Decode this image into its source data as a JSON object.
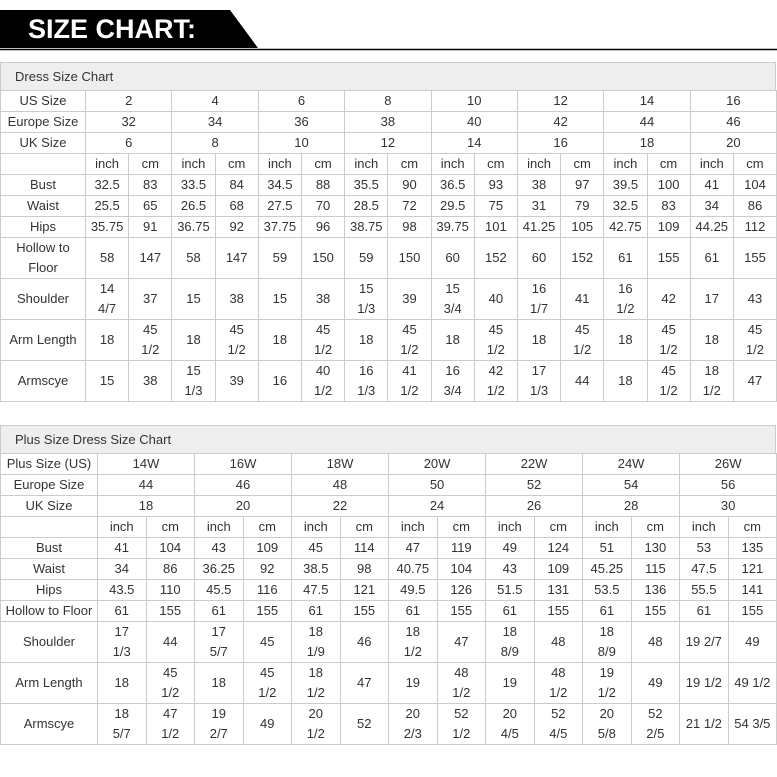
{
  "header": {
    "title": "SIZE CHART:"
  },
  "tables": [
    {
      "title": "Dress Size Chart",
      "rows": [
        {
          "label": "US Size",
          "cells": [
            "2",
            "4",
            "6",
            "8",
            "10",
            "12",
            "14",
            "16"
          ]
        },
        {
          "label": "Europe Size",
          "cells": [
            "32",
            "34",
            "36",
            "38",
            "40",
            "42",
            "44",
            "46"
          ]
        },
        {
          "label": "UK Size",
          "cells": [
            "6",
            "8",
            "10",
            "12",
            "14",
            "16",
            "18",
            "20"
          ]
        },
        {
          "label": null,
          "cells": [
            "inch",
            "cm",
            "inch",
            "cm",
            "inch",
            "cm",
            "inch",
            "cm",
            "inch",
            "cm",
            "inch",
            "cm",
            "inch",
            "cm",
            "inch",
            "cm"
          ]
        },
        {
          "label": "Bust",
          "cells": [
            "32.5",
            "83",
            "33.5",
            "84",
            "34.5",
            "88",
            "35.5",
            "90",
            "36.5",
            "93",
            "38",
            "97",
            "39.5",
            "100",
            "41",
            "104"
          ]
        },
        {
          "label": "Waist",
          "cells": [
            "25.5",
            "65",
            "26.5",
            "68",
            "27.5",
            "70",
            "28.5",
            "72",
            "29.5",
            "75",
            "31",
            "79",
            "32.5",
            "83",
            "34",
            "86"
          ]
        },
        {
          "label": "Hips",
          "cells": [
            "35.75",
            "91",
            "36.75",
            "92",
            "37.75",
            "96",
            "38.75",
            "98",
            "39.75",
            "101",
            "41.25",
            "105",
            "42.75",
            "109",
            "44.25",
            "112"
          ]
        },
        {
          "label": "Hollow to Floor",
          "cells": [
            "58",
            "147",
            "58",
            "147",
            "59",
            "150",
            "59",
            "150",
            "60",
            "152",
            "60",
            "152",
            "61",
            "155",
            "61",
            "155"
          ]
        },
        {
          "label": "Shoulder",
          "cells": [
            "14 4/7",
            "37",
            "15",
            "38",
            "15",
            "38",
            "15 1/3",
            "39",
            "15 3/4",
            "40",
            "16 1/7",
            "41",
            "16 1/2",
            "42",
            "17",
            "43"
          ]
        },
        {
          "label": "Arm Length",
          "cells": [
            "18",
            "45 1/2",
            "18",
            "45 1/2",
            "18",
            "45 1/2",
            "18",
            "45 1/2",
            "18",
            "45 1/2",
            "18",
            "45 1/2",
            "18",
            "45 1/2",
            "18",
            "45 1/2"
          ]
        },
        {
          "label": "Armscye",
          "cells": [
            "15",
            "38",
            "15 1/3",
            "39",
            "16",
            "40 1/2",
            "16 1/3",
            "41 1/2",
            "16 3/4",
            "42 1/2",
            "17 1/3",
            "44",
            "18",
            "45 1/2",
            "18 1/2",
            "47"
          ]
        }
      ]
    },
    {
      "title": "Plus Size Dress Size Chart",
      "rows": [
        {
          "label": "Plus Size (US)",
          "cells": [
            "14W",
            "16W",
            "18W",
            "20W",
            "22W",
            "24W",
            "26W"
          ]
        },
        {
          "label": "Europe Size",
          "cells": [
            "44",
            "46",
            "48",
            "50",
            "52",
            "54",
            "56"
          ]
        },
        {
          "label": "UK Size",
          "cells": [
            "18",
            "20",
            "22",
            "24",
            "26",
            "28",
            "30"
          ]
        },
        {
          "label": null,
          "cells": [
            "inch",
            "cm",
            "inch",
            "cm",
            "inch",
            "cm",
            "inch",
            "cm",
            "inch",
            "cm",
            "inch",
            "cm",
            "inch",
            "cm"
          ]
        },
        {
          "label": "Bust",
          "cells": [
            "41",
            "104",
            "43",
            "109",
            "45",
            "114",
            "47",
            "119",
            "49",
            "124",
            "51",
            "130",
            "53",
            "135"
          ]
        },
        {
          "label": "Waist",
          "cells": [
            "34",
            "86",
            "36.25",
            "92",
            "38.5",
            "98",
            "40.75",
            "104",
            "43",
            "109",
            "45.25",
            "115",
            "47.5",
            "121"
          ]
        },
        {
          "label": "Hips",
          "cells": [
            "43.5",
            "110",
            "45.5",
            "116",
            "47.5",
            "121",
            "49.5",
            "126",
            "51.5",
            "131",
            "53.5",
            "136",
            "55.5",
            "141"
          ]
        },
        {
          "label": "Hollow to Floor",
          "cells": [
            "61",
            "155",
            "61",
            "155",
            "61",
            "155",
            "61",
            "155",
            "61",
            "155",
            "61",
            "155",
            "61",
            "155"
          ]
        },
        {
          "label": "Shoulder",
          "cells": [
            "17 1/3",
            "44",
            "17 5/7",
            "45",
            "18 1/9",
            "46",
            "18 1/2",
            "47",
            "18 8/9",
            "48",
            "18 8/9",
            "48",
            "19 2/7",
            "49"
          ]
        },
        {
          "label": "Arm Length",
          "cells": [
            "18",
            "45 1/2",
            "18",
            "45 1/2",
            "18 1/2",
            "47",
            "19",
            "48 1/2",
            "19",
            "48 1/2",
            "19 1/2",
            "49",
            "19 1/2",
            "49 1/2"
          ]
        },
        {
          "label": "Armscye",
          "cells": [
            "18 5/7",
            "47 1/2",
            "19 2/7",
            "49",
            "20 1/2",
            "52",
            "20 2/3",
            "52 1/2",
            "20 4/5",
            "52 4/5",
            "20 5/8",
            "52 2/5",
            "21 1/2",
            "54 3/5"
          ]
        }
      ]
    }
  ]
}
